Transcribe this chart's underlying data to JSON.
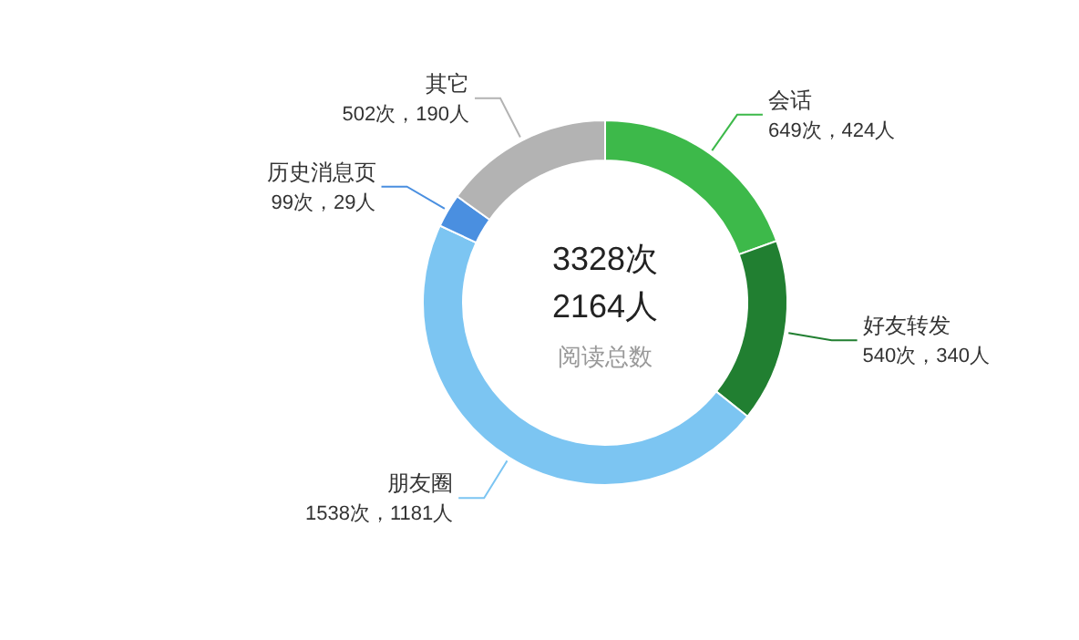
{
  "chart_data": {
    "type": "donut",
    "categories": [
      "会话",
      "好友转发",
      "朋友圈",
      "历史消息页",
      "其它"
    ],
    "values": [
      649,
      540,
      1538,
      99,
      502
    ],
    "value_labels": [
      "649次，424人",
      "540次，340人",
      "1538次，1181人",
      "99次，29人",
      "502次，190人"
    ],
    "colors": [
      "#3db94a",
      "#217f31",
      "#7cc5f2",
      "#4a8fe0",
      "#b3b3b3"
    ],
    "annotations": [
      "3328次",
      "2164人",
      "阅读总数"
    ],
    "legend": false
  }
}
